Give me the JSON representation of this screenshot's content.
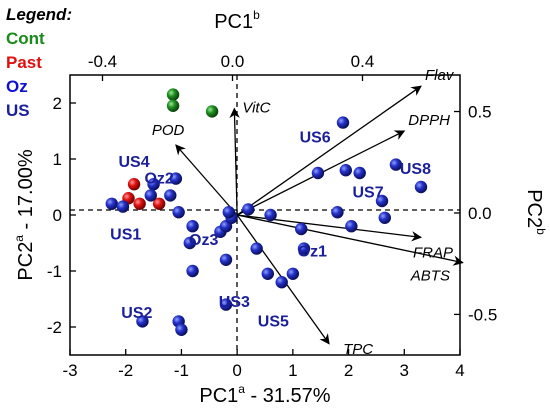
{
  "chart_data": {
    "type": "scatter",
    "legend": {
      "title": "Legend:",
      "items": [
        {
          "label": "Cont",
          "color": "#1a8a1a"
        },
        {
          "label": "Past",
          "color": "#e01010"
        },
        {
          "label": "Oz",
          "color": "#1010d0"
        },
        {
          "label": "US",
          "color": "#1a1f9a"
        }
      ]
    },
    "axes": {
      "bottom": {
        "label_main": "PC1",
        "label_sup": "a",
        "label_rest": " - 31.57%",
        "range": [
          -3,
          4
        ],
        "ticks": [
          -3,
          -2,
          -1,
          0,
          1,
          2,
          3,
          4
        ],
        "tick_labels": [
          "-3",
          "-2",
          "-1",
          "0",
          "1",
          "2",
          "3",
          "4"
        ]
      },
      "left": {
        "label_main": "PC2",
        "label_sup": "a",
        "label_rest": " - 17.00%",
        "range": [
          -2.5,
          2.5
        ],
        "ticks": [
          -2,
          -1,
          0,
          1,
          2
        ],
        "tick_labels": [
          "-2",
          "-1",
          "0",
          "1",
          "2"
        ]
      },
      "top": {
        "label_main": "PC1",
        "label_sup": "b",
        "range": [
          -0.5,
          0.7
        ],
        "ticks": [
          -0.4,
          0.0,
          0.4
        ],
        "tick_labels": [
          "-0.4",
          "0.0",
          "0.4"
        ]
      },
      "right": {
        "label_main": "PC2",
        "label_sup": "b",
        "range": [
          -0.7,
          0.68
        ],
        "ticks": [
          0.5,
          0.0,
          -0.5
        ],
        "tick_labels": [
          "0.5",
          "0.0",
          "-0.5"
        ]
      }
    },
    "series": [
      {
        "name": "Cont",
        "color": "#1a8a1a",
        "points": [
          [
            -1.15,
            2.15
          ],
          [
            -1.15,
            1.95
          ],
          [
            -0.45,
            1.85
          ]
        ]
      },
      {
        "name": "Past",
        "color": "#e01010",
        "points": [
          [
            -1.85,
            0.55
          ],
          [
            -1.95,
            0.3
          ],
          [
            -1.75,
            0.2
          ],
          [
            -1.4,
            0.2
          ]
        ]
      },
      {
        "name": "US",
        "color": "#1a1f9a",
        "points": [
          [
            -2.25,
            0.2
          ],
          [
            -2.05,
            0.15
          ],
          [
            -1.5,
            0.55
          ],
          [
            -1.55,
            0.35
          ],
          [
            -1.2,
            0.35
          ],
          [
            -1.1,
            0.65
          ],
          [
            -1.05,
            0.05
          ],
          [
            -0.8,
            -0.2
          ],
          [
            -0.85,
            -0.5
          ],
          [
            -0.8,
            -1.0
          ],
          [
            -0.3,
            -0.3
          ],
          [
            -0.2,
            -0.2
          ],
          [
            -0.1,
            -0.05
          ],
          [
            -0.15,
            0.05
          ],
          [
            -0.2,
            -0.8
          ],
          [
            -0.2,
            -1.6
          ],
          [
            -1.7,
            -1.9
          ],
          [
            -1.05,
            -1.9
          ],
          [
            -1.0,
            -2.05
          ],
          [
            0.2,
            0.1
          ],
          [
            0.6,
            0.0
          ],
          [
            0.35,
            -0.6
          ],
          [
            0.55,
            -1.05
          ],
          [
            0.8,
            -1.2
          ],
          [
            1.0,
            -1.05
          ],
          [
            1.2,
            -0.6
          ],
          [
            1.15,
            -0.25
          ],
          [
            1.45,
            0.75
          ],
          [
            1.9,
            1.65
          ],
          [
            1.95,
            0.8
          ],
          [
            2.2,
            0.75
          ],
          [
            1.8,
            0.05
          ],
          [
            2.05,
            -0.2
          ],
          [
            2.6,
            0.25
          ],
          [
            2.65,
            -0.05
          ],
          [
            2.85,
            0.9
          ],
          [
            3.3,
            0.5
          ]
        ]
      }
    ],
    "loading_vectors": [
      {
        "name": "Flav",
        "x": 3.3,
        "y": 2.3
      },
      {
        "name": "DPPH",
        "x": 3.0,
        "y": 1.5
      },
      {
        "name": "VitC",
        "x": -0.05,
        "y": 1.9
      },
      {
        "name": "POD",
        "x": -1.1,
        "y": 1.25
      },
      {
        "name": "FRAP",
        "x": 3.3,
        "y": -0.4
      },
      {
        "name": "ABTS",
        "x": 4.05,
        "y": -0.85
      },
      {
        "name": "TPC",
        "x": 1.65,
        "y": -2.3
      }
    ],
    "group_labels": [
      {
        "text": "US6",
        "x": 1.4,
        "y": 1.38
      },
      {
        "text": "US8",
        "x": 3.2,
        "y": 0.82
      },
      {
        "text": "US4",
        "x": -1.85,
        "y": 0.95
      },
      {
        "text": "Oz2",
        "x": -1.4,
        "y": 0.65
      },
      {
        "text": "US7",
        "x": 2.35,
        "y": 0.4
      },
      {
        "text": "US1",
        "x": -2.0,
        "y": -0.35
      },
      {
        "text": "Oz3",
        "x": -0.6,
        "y": -0.45
      },
      {
        "text": "Oz1",
        "x": 1.35,
        "y": -0.65
      },
      {
        "text": "US3",
        "x": -0.05,
        "y": -1.55
      },
      {
        "text": "US5",
        "x": 0.65,
        "y": -1.9
      },
      {
        "text": "US2",
        "x": -1.8,
        "y": -1.75
      }
    ]
  }
}
